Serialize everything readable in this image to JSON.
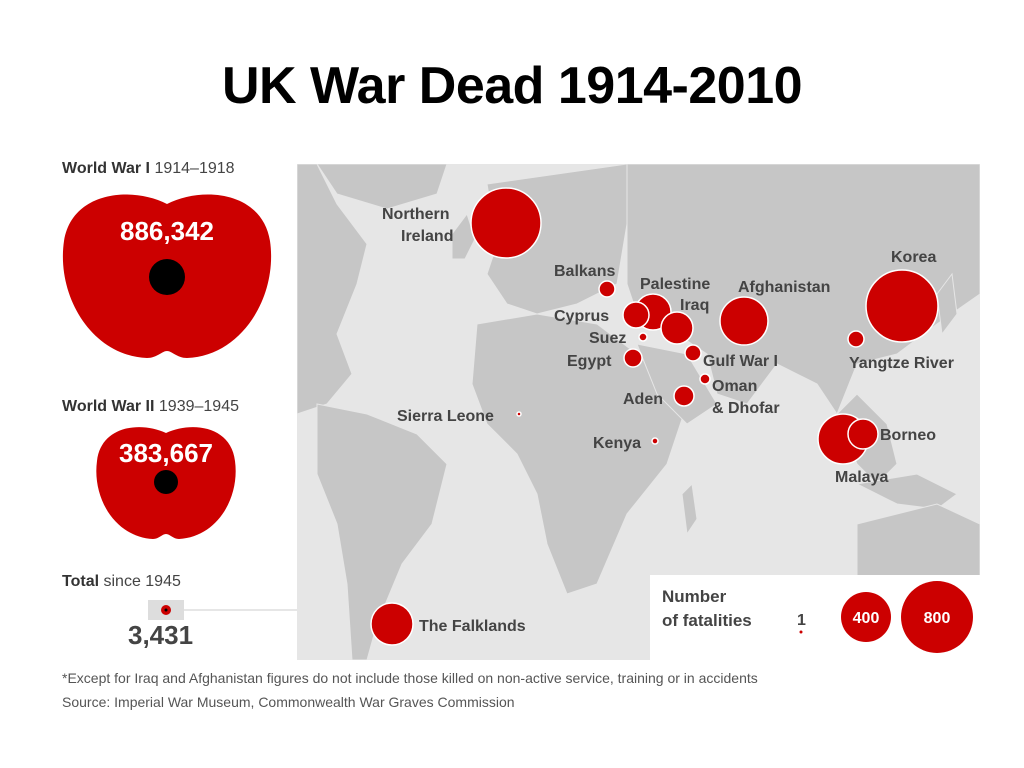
{
  "title": "UK War Dead 1914-2010",
  "ww1": {
    "label_bold": "World War I",
    "label_years": "1914–1918",
    "value": "886,342"
  },
  "ww2": {
    "label_bold": "World War II",
    "label_years": "1939–1945",
    "value": "383,667"
  },
  "total": {
    "label_bold": "Total",
    "label_rest": "since 1945",
    "value": "3,431"
  },
  "conflicts": {
    "northern_ireland_1": "Northern",
    "northern_ireland_2": "Ireland",
    "balkans": "Balkans",
    "palestine": "Palestine",
    "iraq": "Iraq",
    "afghanistan": "Afghanistan",
    "korea": "Korea",
    "cyprus": "Cyprus",
    "suez": "Suez",
    "egypt": "Egypt",
    "gulf_war": "Gulf War I",
    "yangtze": "Yangtze River",
    "oman_1": "Oman",
    "oman_2": "& Dhofar",
    "aden": "Aden",
    "sierra_leone": "Sierra Leone",
    "kenya": "Kenya",
    "borneo": "Borneo",
    "malaya": "Malaya",
    "falklands": "The Falklands"
  },
  "legend": {
    "title_1": "Number",
    "title_2": "of fatalities",
    "one": "1",
    "mid": "400",
    "max": "800"
  },
  "colors": {
    "accent": "#cc0000",
    "map_land": "#c6c6c6",
    "map_sea": "#e6e6e6"
  },
  "footnote": "*Except for Iraq and Afghanistan figures do not include those killed on non-active service, training or in accidents",
  "source": "Source: Imperial War Museum, Commonwealth War Graves Commission"
}
